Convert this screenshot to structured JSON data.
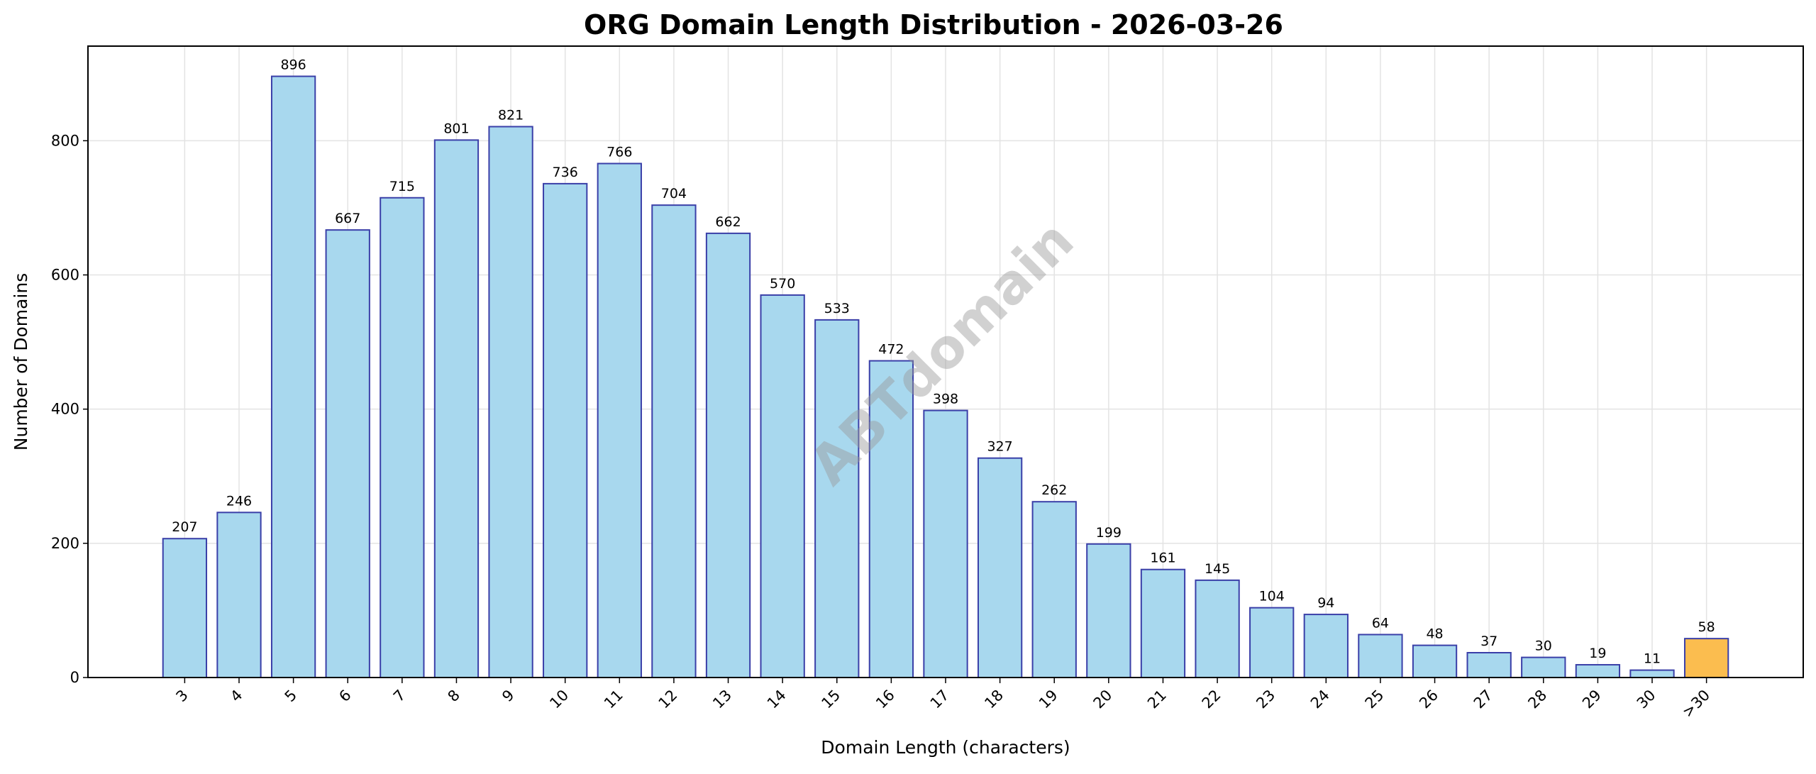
{
  "chart_data": {
    "type": "bar",
    "title": "ORG Domain Length Distribution - 2026-03-26",
    "xlabel": "Domain Length (characters)",
    "ylabel": "Number of Domains",
    "categories": [
      "3",
      "4",
      "5",
      "6",
      "7",
      "8",
      "9",
      "10",
      "11",
      "12",
      "13",
      "14",
      "15",
      "16",
      "17",
      "18",
      "19",
      "20",
      "21",
      "22",
      "23",
      "24",
      "25",
      "26",
      "27",
      "28",
      "29",
      "30",
      ">30"
    ],
    "values": [
      207,
      246,
      896,
      667,
      715,
      801,
      821,
      736,
      766,
      704,
      662,
      570,
      533,
      472,
      398,
      327,
      262,
      199,
      161,
      145,
      104,
      94,
      64,
      48,
      37,
      30,
      19,
      11,
      58
    ],
    "ylim": [
      0,
      941
    ],
    "yticks": [
      0,
      200,
      400,
      600,
      800
    ],
    "grid": true,
    "colors": {
      "bar": "#a8d8ee",
      "bar_edge": "#3a3fa8",
      "highlight": "#fbbd4f",
      "grid": "#e3e3e3"
    },
    "highlight_category": ">30",
    "watermark": "ABTdomain"
  }
}
